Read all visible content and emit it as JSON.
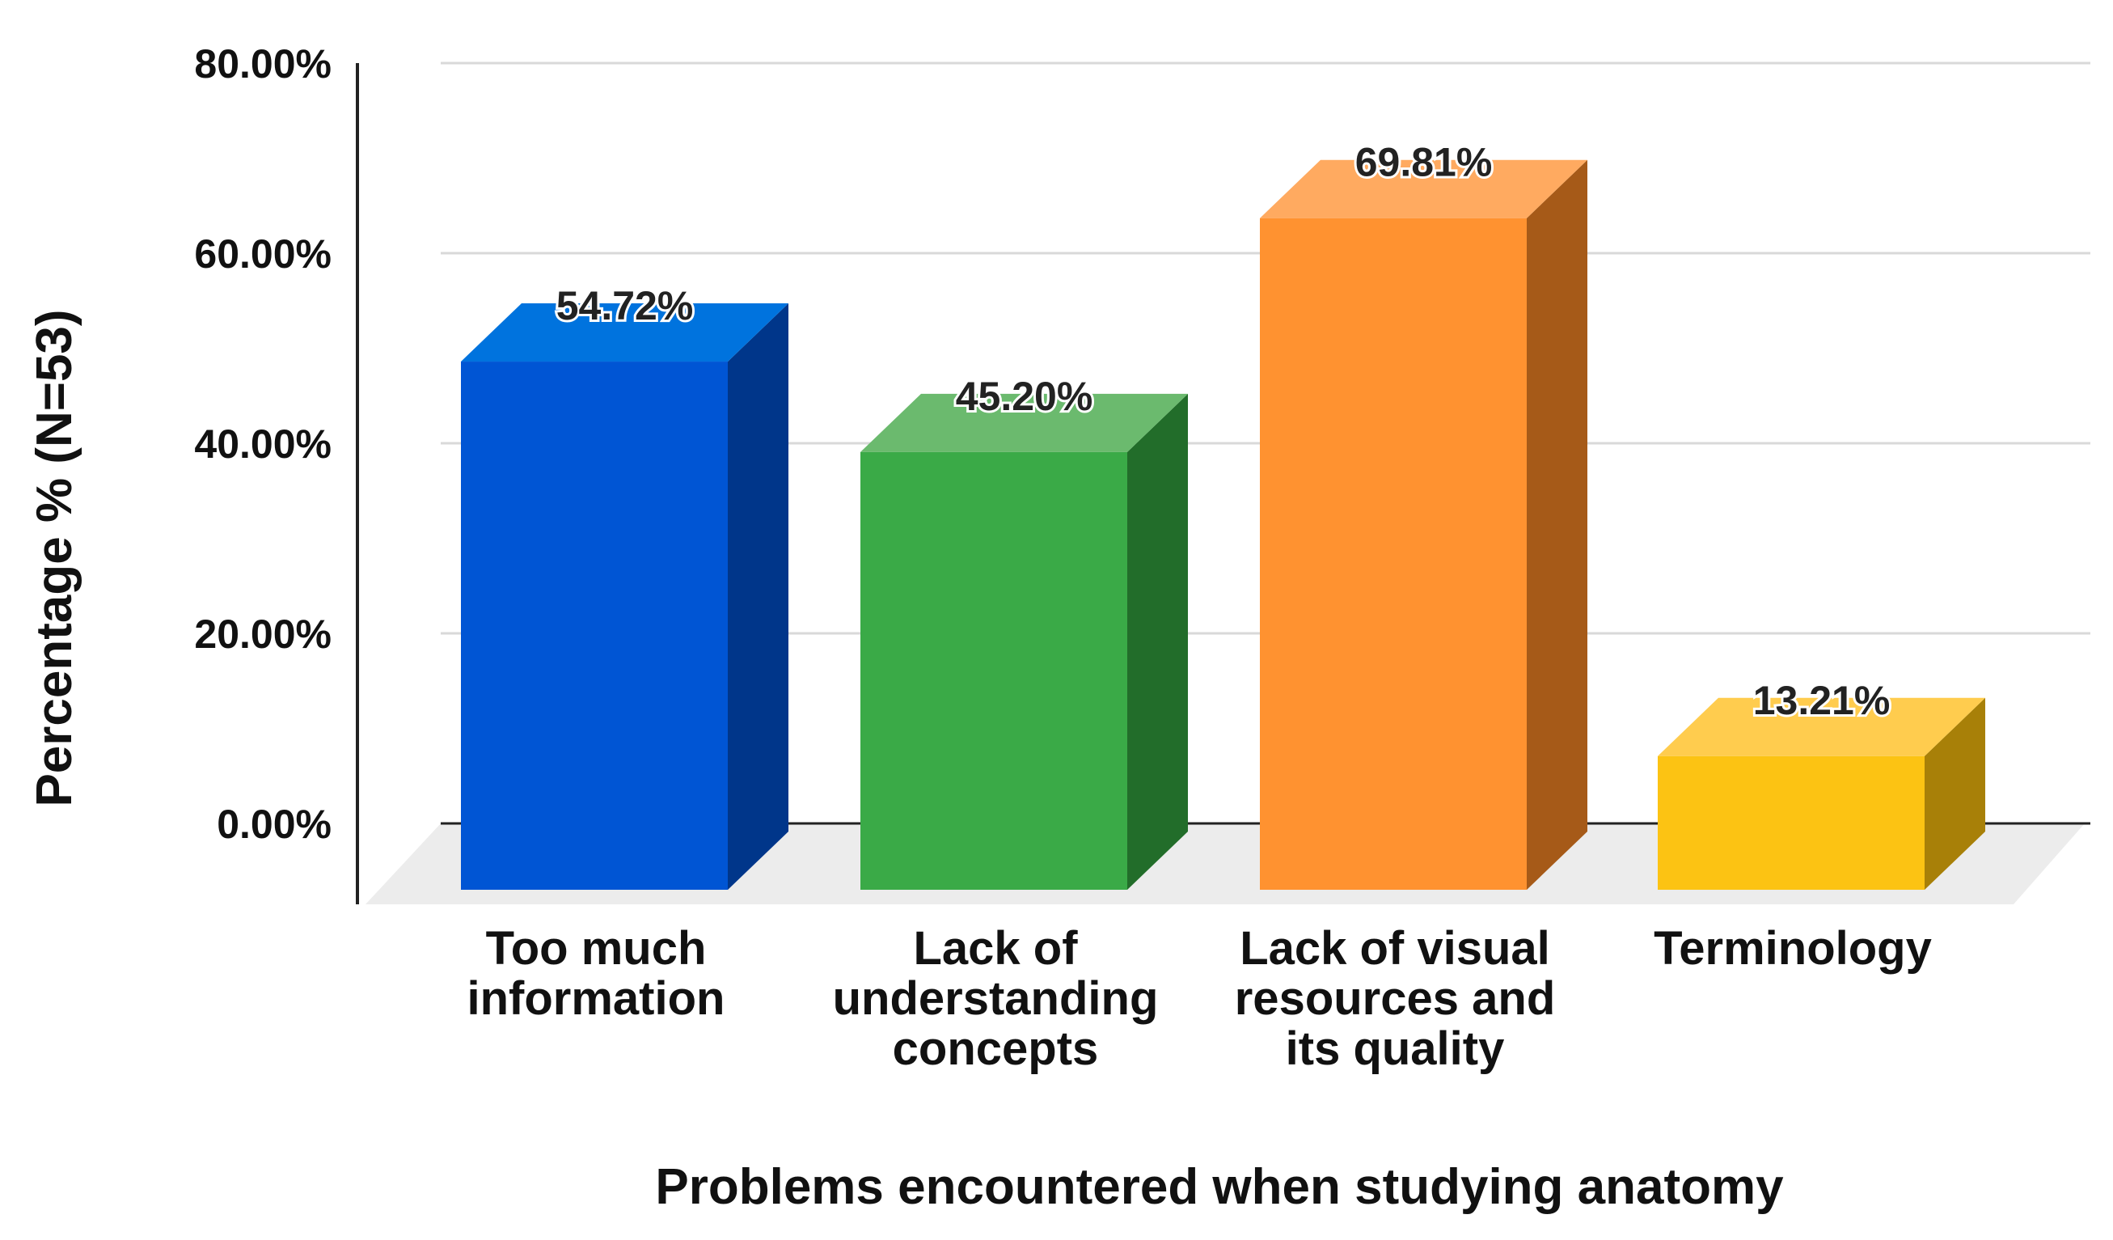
{
  "chart_data": {
    "type": "bar",
    "style": "3d",
    "categories": [
      [
        "Too much",
        "information"
      ],
      [
        "Lack of",
        "understanding",
        "concepts"
      ],
      [
        "Lack of visual",
        "resources and",
        "its quality"
      ],
      [
        "Terminology"
      ]
    ],
    "values": [
      54.72,
      45.2,
      69.81,
      13.21
    ],
    "value_labels": [
      "54.72%",
      "45.20%",
      "69.81%",
      "13.21%"
    ],
    "colors": [
      "#0055D4",
      "#3AAA47",
      "#FF9230",
      "#FCC313"
    ],
    "side_colors": [
      "#00368A",
      "#226D2A",
      "#A65A18",
      "#A88008"
    ],
    "top_colors": [
      "#0073DE",
      "#6BBA6E",
      "#FFAA60",
      "#FFCC4E"
    ],
    "xlabel": "Problems encountered when studying anatomy",
    "ylabel": "Percentage % (N=53)",
    "ylim": [
      0,
      80
    ],
    "yticks": [
      "0.00%",
      "20.00%",
      "40.00%",
      "60.00%",
      "80.00%"
    ],
    "grid": true,
    "legend": "none"
  }
}
